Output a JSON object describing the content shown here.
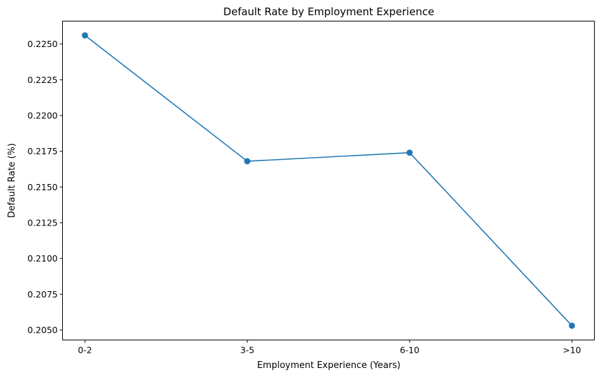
{
  "chart_data": {
    "type": "line",
    "title": "Default Rate by Employment Experience",
    "xlabel": "Employment Experience (Years)",
    "ylabel": "Default Rate (%)",
    "categories": [
      "0-2",
      "3-5",
      "6-10",
      ">10"
    ],
    "series": [
      {
        "values": [
          0.2256,
          0.2168,
          0.2174,
          0.2053
        ],
        "color": "#1f77b4",
        "marker": "circle"
      }
    ],
    "yticks": [
      "0.2050",
      "0.2075",
      "0.2100",
      "0.2125",
      "0.2150",
      "0.2175",
      "0.2200",
      "0.2225",
      "0.2250"
    ],
    "ylim": [
      0.2043,
      0.2266
    ],
    "grid": false,
    "legend": "none"
  }
}
